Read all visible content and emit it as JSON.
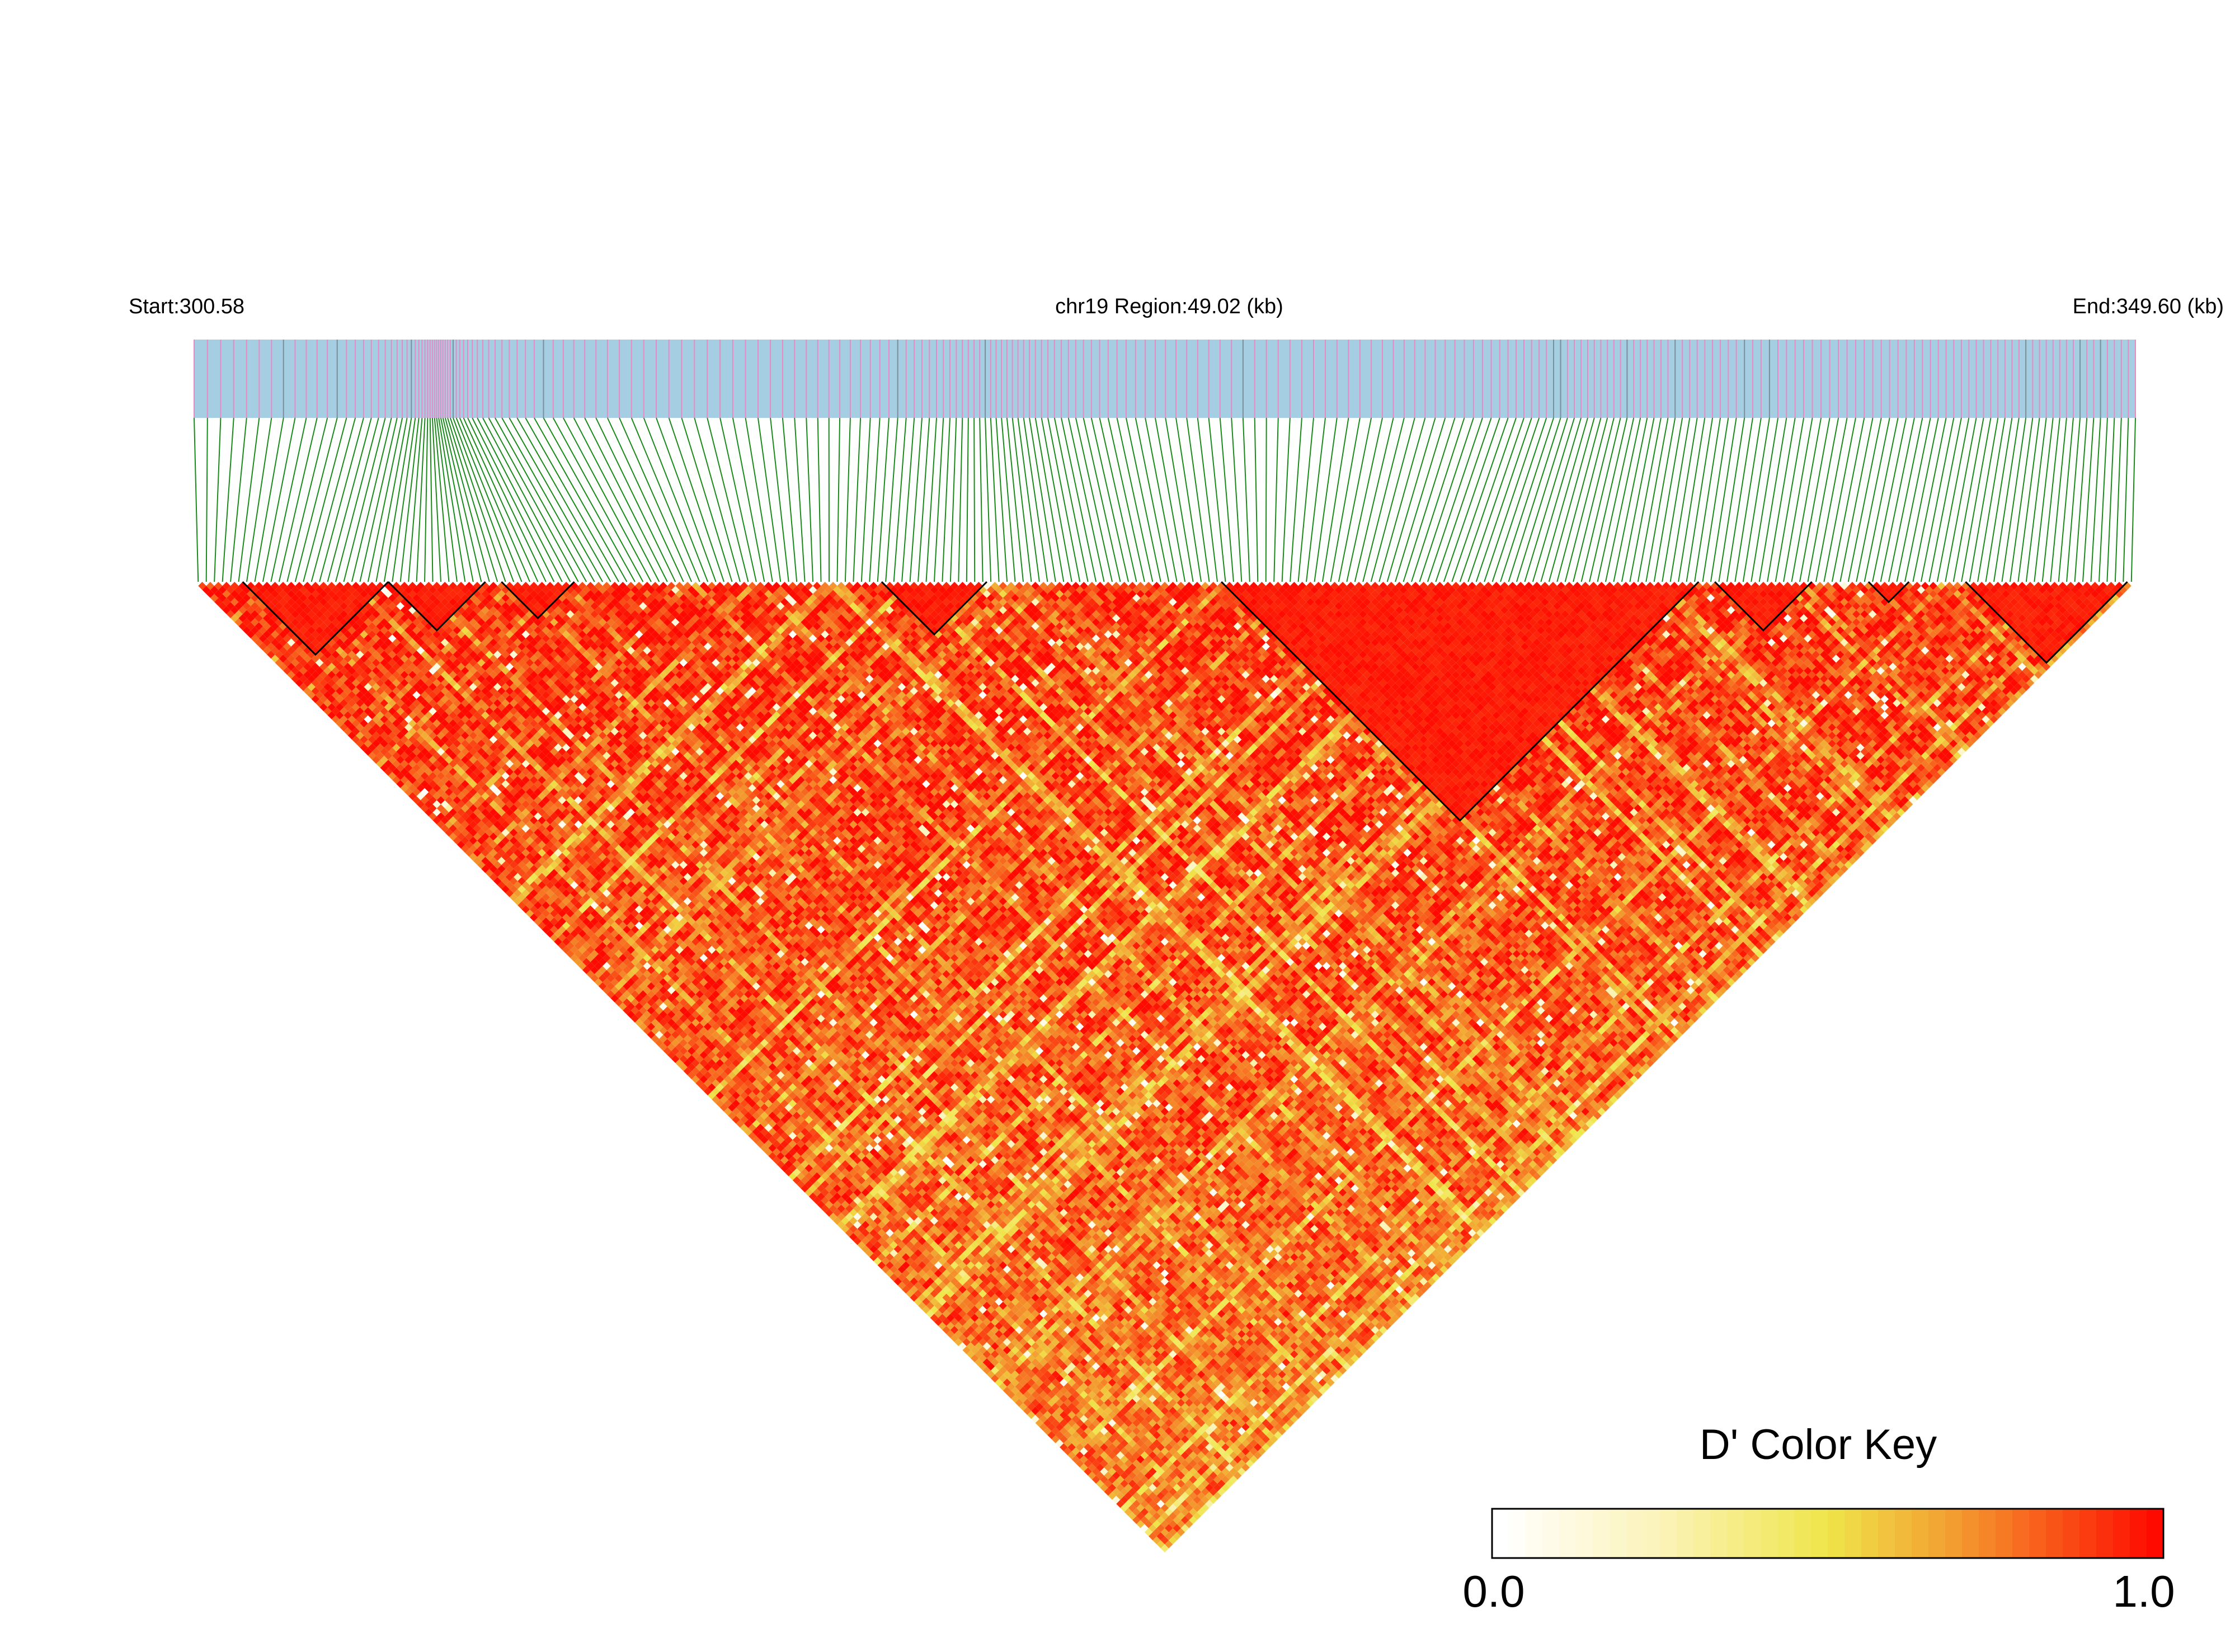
{
  "chart_data": {
    "type": "heatmap",
    "subtype": "linkage-disequilibrium-triangle",
    "start_label": "Start:300.58",
    "region_label": "chr19 Region:49.02 (kb)",
    "end_label": "End:349.60 (kb)",
    "start_kb": 300.58,
    "end_kb": 349.6,
    "region_kb": 49.02,
    "chromosome": "chr19",
    "metric": "D'",
    "snp_count": 240,
    "value_range": [
      0.0,
      1.0
    ],
    "legend": {
      "title": "D' Color Key",
      "min_label": "0.0",
      "max_label": "1.0",
      "placement": "bottom-right"
    },
    "colors": {
      "track_background": "#a6cee3",
      "snp_marker": "#e78ac3",
      "connector": "#1a8a1a",
      "block_outline": "#000000",
      "scale": [
        "#ffffff",
        "#f5eb4d",
        "#f39a2f",
        "#ff0000"
      ]
    },
    "haplotype_blocks_snp_index": [
      [
        6,
        23
      ],
      [
        24,
        35
      ],
      [
        38,
        46
      ],
      [
        85,
        97
      ],
      [
        127,
        185
      ],
      [
        188,
        199
      ],
      [
        207,
        211
      ],
      [
        219,
        238
      ]
    ]
  }
}
